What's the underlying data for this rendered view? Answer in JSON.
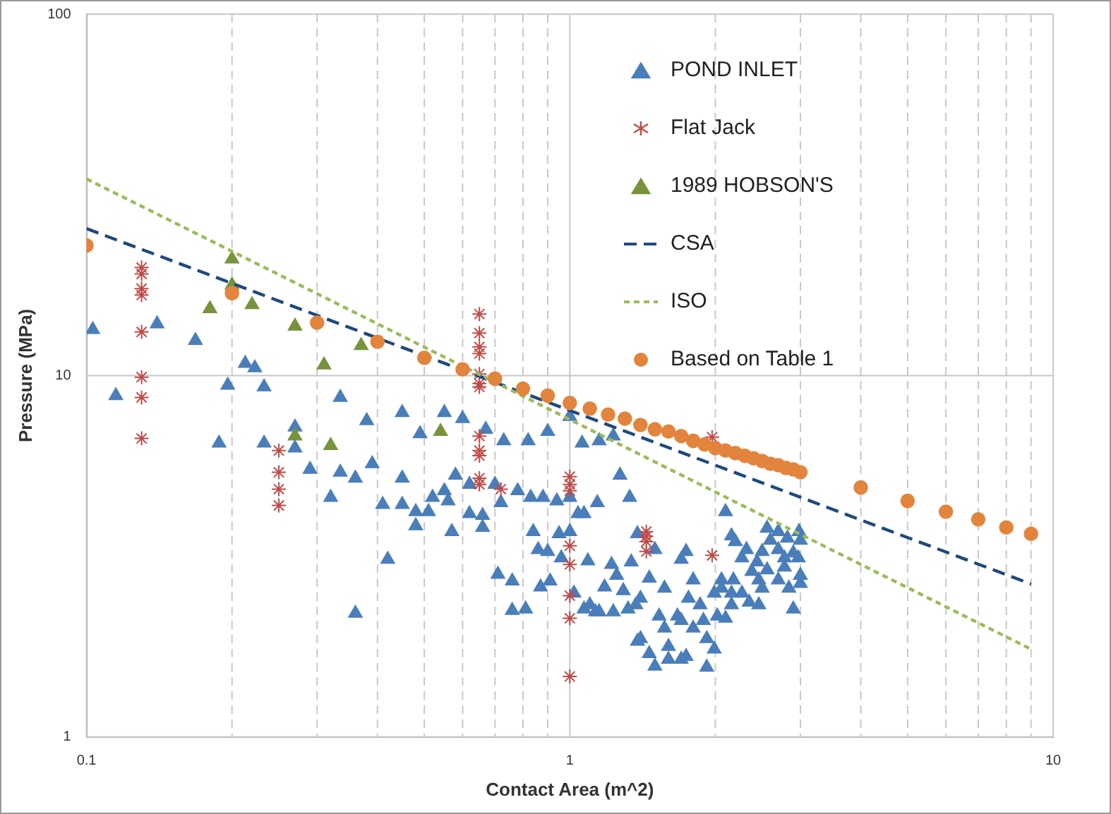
{
  "chart_data": {
    "type": "scatter",
    "xlabel": "Contact Area (m^2)",
    "ylabel": "Pressure (MPa)",
    "log": "xy",
    "xlim": [
      0.1,
      10
    ],
    "ylim": [
      1,
      100
    ],
    "xticks": [
      0.1,
      {
        "value": 0.2,
        "label": null
      },
      {
        "value": 0.3,
        "label": null
      },
      {
        "value": 0.4,
        "label": null
      },
      {
        "value": 0.5,
        "label": null
      },
      {
        "value": 0.6,
        "label": null
      },
      {
        "value": 0.7,
        "label": null
      },
      {
        "value": 0.8,
        "label": null
      },
      {
        "value": 0.9,
        "label": null
      },
      1,
      {
        "value": 2,
        "label": null
      },
      {
        "value": 3,
        "label": null
      },
      {
        "value": 4,
        "label": null
      },
      {
        "value": 5,
        "label": null
      },
      {
        "value": 6,
        "label": null
      },
      {
        "value": 7,
        "label": null
      },
      {
        "value": 8,
        "label": null
      },
      {
        "value": 9,
        "label": null
      },
      10
    ],
    "yticks": [
      1,
      10,
      100
    ],
    "grid": true,
    "legend": "top right",
    "series": [
      {
        "name": "POND INLET",
        "marker": "triangle",
        "color": "#4a7ebb",
        "x": [
          0.103,
          0.115,
          0.14,
          0.168,
          0.196,
          0.213,
          0.223,
          0.233,
          0.188,
          0.233,
          0.27,
          0.27,
          0.335,
          0.38,
          0.45,
          0.49,
          0.55,
          0.29,
          0.335,
          0.36,
          0.39,
          0.45,
          0.32,
          0.41,
          0.45,
          0.48,
          0.48,
          0.52,
          0.51,
          0.55,
          0.56,
          0.57,
          0.42,
          0.36,
          0.58,
          0.6,
          0.67,
          0.73,
          0.82,
          0.9,
          1.06,
          1.15,
          1.23,
          1.27,
          1.33,
          1.0,
          0.62,
          0.7,
          0.72,
          0.78,
          0.83,
          0.88,
          0.94,
          1.0,
          1.14,
          1.04,
          1.07,
          0.62,
          0.66,
          0.66,
          0.84,
          0.95,
          1.0,
          0.86,
          0.9,
          0.96,
          1.09,
          0.71,
          0.76,
          0.87,
          0.91,
          0.76,
          0.81,
          1.02,
          1.07,
          1.13,
          1.23,
          1.32,
          1.38,
          2.1,
          1.38,
          1.5,
          1.74,
          1.7,
          1.22,
          1.34,
          1.25,
          1.46,
          1.18,
          1.29,
          1.4,
          1.57,
          1.8,
          1.76,
          1.86,
          1.99,
          2.06,
          2.16,
          1.1,
          1.15,
          1.37,
          1.53,
          1.67,
          1.7,
          1.89,
          2.02,
          2.1,
          1.57,
          1.8,
          1.92,
          1.4,
          1.46,
          1.6,
          1.7,
          1.5,
          1.6,
          1.99,
          1.92,
          1.74,
          2.16,
          2.2,
          2.56,
          2.7,
          2.98,
          2.6,
          2.82,
          3.0,
          2.32,
          2.5,
          2.7,
          2.9,
          2.27,
          2.44,
          2.78,
          2.97,
          2.38,
          2.56,
          2.78,
          3.0,
          2.18,
          2.46,
          2.7,
          2.84,
          2.06,
          2.27,
          2.5,
          2.16,
          2.35,
          2.46,
          2.9,
          3.0
        ],
        "values": [
          13.4,
          8.8,
          13.9,
          12.5,
          9.4,
          10.8,
          10.5,
          9.3,
          6.5,
          6.5,
          7.2,
          6.3,
          8.7,
          7.5,
          7.9,
          6.9,
          7.9,
          5.5,
          5.4,
          5.2,
          5.7,
          5.2,
          4.6,
          4.4,
          4.4,
          4.2,
          3.84,
          4.6,
          4.2,
          4.8,
          4.5,
          3.7,
          3.1,
          2.2,
          5.3,
          7.6,
          7.1,
          6.6,
          6.6,
          7.0,
          6.5,
          6.6,
          6.8,
          5.3,
          4.6,
          7.7,
          5.0,
          5.0,
          4.45,
          4.8,
          4.6,
          4.6,
          4.5,
          4.6,
          4.45,
          4.15,
          4.15,
          4.15,
          4.1,
          3.8,
          3.7,
          3.65,
          3.7,
          3.3,
          3.26,
          3.13,
          3.07,
          2.82,
          2.7,
          2.6,
          2.7,
          2.24,
          2.26,
          2.5,
          2.26,
          2.22,
          2.22,
          2.26,
          1.84,
          4.2,
          3.65,
          3.3,
          3.26,
          3.1,
          3.0,
          3.05,
          2.8,
          2.75,
          2.6,
          2.54,
          2.42,
          2.58,
          2.72,
          2.42,
          2.32,
          2.5,
          2.72,
          2.5,
          2.32,
          2.22,
          2.32,
          2.16,
          2.16,
          2.1,
          2.1,
          2.16,
          2.13,
          2.0,
          2.0,
          1.87,
          1.87,
          1.7,
          1.78,
          1.64,
          1.57,
          1.64,
          1.75,
          1.56,
          1.67,
          3.6,
          3.47,
          3.78,
          3.7,
          3.7,
          3.5,
          3.55,
          3.5,
          3.3,
          3.26,
          3.3,
          3.23,
          3.13,
          3.05,
          3.13,
          3.13,
          2.87,
          2.9,
          2.95,
          2.8,
          2.72,
          2.72,
          2.72,
          2.58,
          2.58,
          2.5,
          2.58,
          2.32,
          2.36,
          2.32,
          2.26,
          2.66
        ]
      },
      {
        "name": "Flat Jack",
        "marker": "cross",
        "color": "#be4b48",
        "x": [
          0.13,
          0.13,
          0.13,
          0.13,
          0.13,
          0.13,
          0.13,
          0.13,
          0.25,
          0.25,
          0.25,
          0.25,
          0.65,
          0.65,
          0.65,
          0.65,
          0.65,
          0.65,
          0.65,
          0.65,
          0.65,
          0.65,
          0.65,
          0.65,
          0.72,
          1.0,
          1.0,
          1.0,
          1.0,
          1.0,
          1.0,
          1.0,
          1.0,
          1.44,
          1.44,
          1.44,
          1.44,
          1.97,
          1.97
        ],
        "values": [
          19.9,
          19.1,
          17.4,
          16.7,
          13.2,
          9.9,
          8.7,
          6.7,
          6.2,
          5.4,
          4.85,
          4.37,
          14.8,
          13.1,
          12.0,
          11.5,
          10.1,
          9.5,
          9.3,
          6.8,
          6.2,
          6.0,
          5.2,
          5.0,
          4.85,
          5.25,
          5.0,
          4.8,
          3.38,
          3.0,
          2.46,
          2.13,
          1.47,
          3.7,
          3.59,
          3.47,
          3.26,
          6.75,
          3.18
        ]
      },
      {
        "name": "1989 HOBSON'S",
        "marker": "triangle",
        "color": "#77933c",
        "x": [
          0.18,
          0.2,
          0.2,
          0.22,
          0.27,
          0.27,
          0.31,
          0.32,
          0.37,
          0.54
        ],
        "values": [
          15.3,
          21.0,
          17.8,
          15.7,
          13.7,
          6.8,
          10.7,
          6.4,
          12.1,
          7.0
        ]
      },
      {
        "name": "CSA",
        "type": "line",
        "marker": "none",
        "line_style": "dashed",
        "color": "#1f497d",
        "x": [
          0.1,
          9
        ],
        "values": [
          25.5,
          2.65
        ]
      },
      {
        "name": "ISO",
        "type": "line",
        "marker": "none",
        "line_style": "dotted",
        "color": "#9bbb59",
        "x": [
          0.1,
          9
        ],
        "values": [
          35,
          1.75
        ]
      },
      {
        "name": "Based on Table 1",
        "marker": "circle",
        "color": "#e3843d",
        "x": [
          0.1,
          0.2,
          0.3,
          0.4,
          0.5,
          0.6,
          0.7,
          0.8,
          0.9,
          1.0,
          1.1,
          1.2,
          1.3,
          1.4,
          1.5,
          1.6,
          1.7,
          1.8,
          1.9,
          2.0,
          2.1,
          2.2,
          2.3,
          2.4,
          2.5,
          2.6,
          2.7,
          2.8,
          2.9,
          3.0,
          4,
          5,
          6,
          7,
          8,
          9
        ],
        "values": [
          22.9,
          16.9,
          14.0,
          12.4,
          11.2,
          10.4,
          9.8,
          9.2,
          8.8,
          8.4,
          8.1,
          7.8,
          7.6,
          7.3,
          7.1,
          7.0,
          6.8,
          6.6,
          6.45,
          6.3,
          6.2,
          6.1,
          6.0,
          5.9,
          5.8,
          5.7,
          5.65,
          5.55,
          5.5,
          5.4,
          4.9,
          4.5,
          4.2,
          4.0,
          3.8,
          3.65
        ]
      }
    ]
  }
}
